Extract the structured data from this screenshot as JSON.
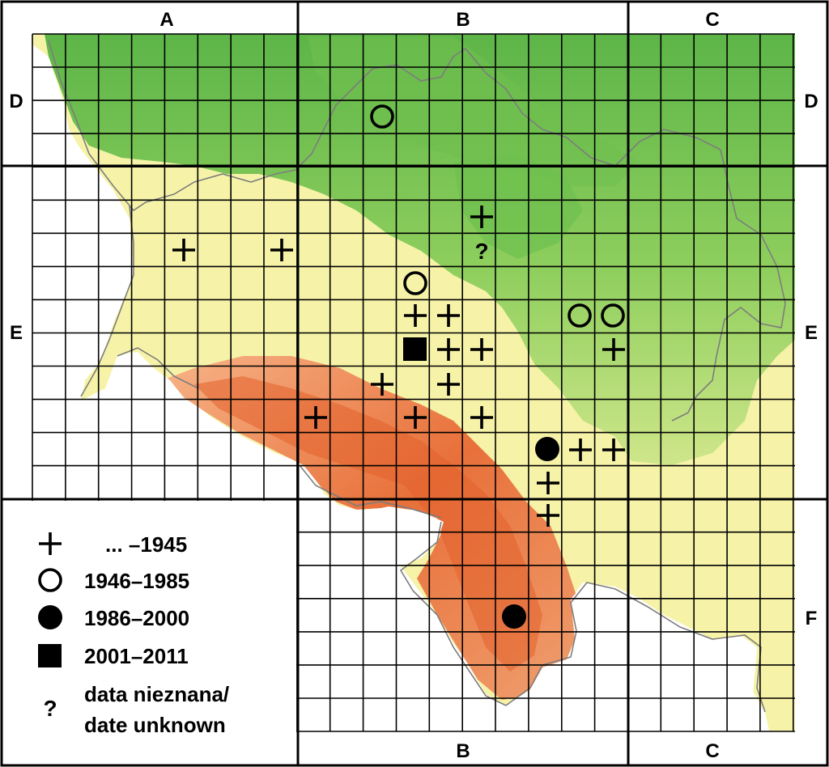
{
  "zones": {
    "top": [
      "A",
      "B",
      "C"
    ],
    "bottom": [
      "B",
      "C"
    ],
    "left": [
      "D",
      "E"
    ],
    "right": [
      "D",
      "E",
      "F"
    ]
  },
  "legend": {
    "items": [
      {
        "symbol": "plus",
        "label": "...  –1945"
      },
      {
        "symbol": "open-circle",
        "label": "1946–1985"
      },
      {
        "symbol": "filled-circle",
        "label": "1986–2000"
      },
      {
        "symbol": "filled-square",
        "label": "2001–2011"
      },
      {
        "symbol": "question",
        "label": "data nieznana/",
        "label2": "date unknown"
      }
    ]
  },
  "question_symbol": "?",
  "colors": {
    "lowland_green": "#5fb84a",
    "upland_yellow": "#f6f3a8",
    "mountain_red": "#e2612b",
    "grid": "#000000",
    "border": "#7a7a7a"
  }
}
